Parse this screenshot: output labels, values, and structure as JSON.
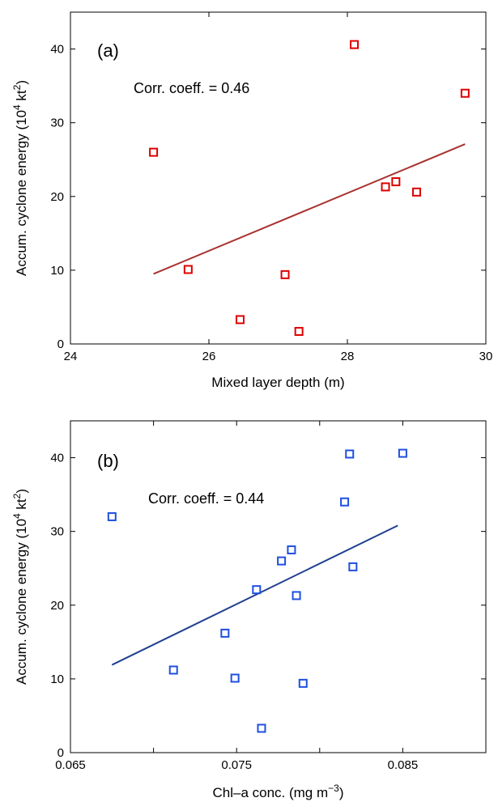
{
  "chart_data": [
    {
      "type": "scatter",
      "panel_label": "(a)",
      "annotation": "Corr. coeff. = 0.46",
      "xlabel": "Mixed layer depth (m)",
      "ylabel_parts": {
        "main": "Accum. cyclone energy (10",
        "sup1": "4",
        "mid": " kt",
        "sup2": "2",
        "end": ")"
      },
      "xlim": [
        24,
        30
      ],
      "ylim": [
        0,
        45
      ],
      "xticks": [
        24,
        26,
        28,
        30
      ],
      "xtick_labels": [
        "24",
        "26",
        "28",
        "30"
      ],
      "yticks": [
        0,
        10,
        20,
        30,
        40
      ],
      "ytick_labels": [
        "0",
        "10",
        "20",
        "30",
        "40"
      ],
      "grid": false,
      "marker_color": "#dd0000",
      "line_color": "#a83232",
      "points": [
        {
          "x": 25.2,
          "y": 26.0
        },
        {
          "x": 25.7,
          "y": 10.1
        },
        {
          "x": 26.45,
          "y": 3.3
        },
        {
          "x": 27.1,
          "y": 9.4
        },
        {
          "x": 27.3,
          "y": 1.7
        },
        {
          "x": 28.1,
          "y": 40.6
        },
        {
          "x": 28.55,
          "y": 21.3
        },
        {
          "x": 28.7,
          "y": 22.0
        },
        {
          "x": 29.0,
          "y": 20.6
        },
        {
          "x": 29.7,
          "y": 34.0
        }
      ],
      "fit_line": [
        {
          "x": 25.2,
          "y": 9.5
        },
        {
          "x": 29.7,
          "y": 27.1
        }
      ]
    },
    {
      "type": "scatter",
      "panel_label": "(b)",
      "annotation": "Corr. coeff. = 0.44",
      "xlabel_parts": {
        "main": "Chl–a conc. (mg m",
        "sup": "−3",
        "end": ")"
      },
      "ylabel_parts": {
        "main": "Accum. cyclone energy (10",
        "sup1": "4",
        "mid": " kt",
        "sup2": "2",
        "end": ")"
      },
      "xlim": [
        0.065,
        0.09
      ],
      "ylim": [
        0,
        45
      ],
      "xticks": [
        0.065,
        0.075,
        0.085
      ],
      "xtick_labels": [
        "0.065",
        "0.075",
        "0.085"
      ],
      "minor_xticks": [
        0.07,
        0.08,
        0.09
      ],
      "yticks": [
        0,
        10,
        20,
        30,
        40
      ],
      "ytick_labels": [
        "0",
        "10",
        "20",
        "30",
        "40"
      ],
      "grid": false,
      "marker_color": "#1f4fe0",
      "line_color": "#1f3f8f",
      "points": [
        {
          "x": 0.0675,
          "y": 32.0
        },
        {
          "x": 0.0712,
          "y": 11.2
        },
        {
          "x": 0.0743,
          "y": 16.2
        },
        {
          "x": 0.0749,
          "y": 10.1
        },
        {
          "x": 0.0762,
          "y": 22.1
        },
        {
          "x": 0.0765,
          "y": 3.3
        },
        {
          "x": 0.0777,
          "y": 26.0
        },
        {
          "x": 0.0783,
          "y": 27.5
        },
        {
          "x": 0.0786,
          "y": 21.3
        },
        {
          "x": 0.079,
          "y": 9.4
        },
        {
          "x": 0.0815,
          "y": 34.0
        },
        {
          "x": 0.0818,
          "y": 40.5
        },
        {
          "x": 0.082,
          "y": 25.2
        },
        {
          "x": 0.085,
          "y": 40.6
        }
      ],
      "fit_line": [
        {
          "x": 0.0675,
          "y": 11.9
        },
        {
          "x": 0.0847,
          "y": 30.8
        }
      ]
    }
  ]
}
